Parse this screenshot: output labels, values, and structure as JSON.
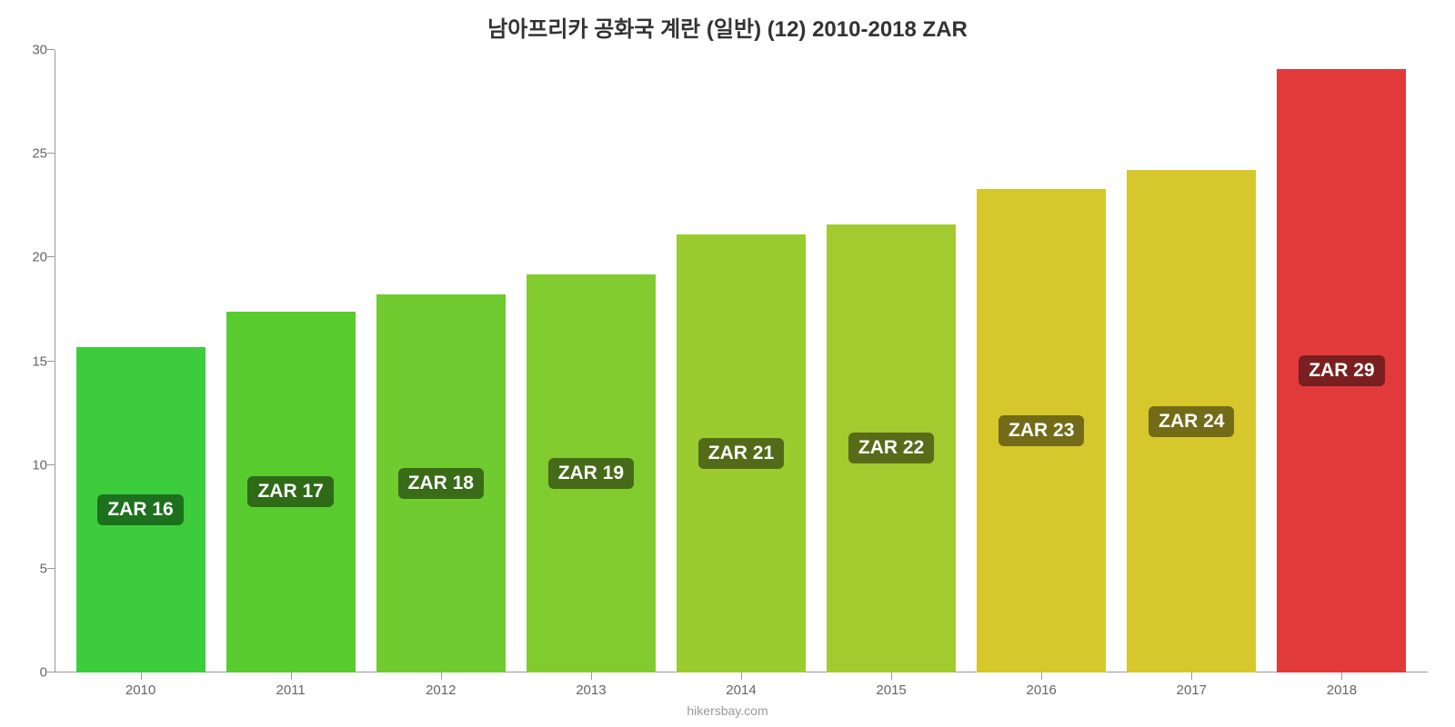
{
  "chart": {
    "type": "bar",
    "title": "남아프리카 공화국 계란 (일반) (12) 2010-2018 ZAR",
    "title_fontsize": 24,
    "title_color": "#333333",
    "background_color": "#ffffff",
    "axis_color": "#999999",
    "label_color": "#666666",
    "label_fontsize": 15,
    "ylim": [
      0,
      30
    ],
    "ytick_step": 5,
    "yticks": [
      {
        "value": 0,
        "label": "0"
      },
      {
        "value": 5,
        "label": "5"
      },
      {
        "value": 10,
        "label": "10"
      },
      {
        "value": 15,
        "label": "15"
      },
      {
        "value": 20,
        "label": "20"
      },
      {
        "value": 25,
        "label": "25"
      },
      {
        "value": 30,
        "label": "30"
      }
    ],
    "bar_width": 0.86,
    "bars": [
      {
        "category": "2010",
        "value": 15.7,
        "label": "ZAR 16",
        "bar_color": "#3ccc3c",
        "label_bg": "#1d701d"
      },
      {
        "category": "2011",
        "value": 17.4,
        "label": "ZAR 17",
        "bar_color": "#58cb2f",
        "label_bg": "#2f6a18"
      },
      {
        "category": "2012",
        "value": 18.2,
        "label": "ZAR 18",
        "bar_color": "#6fcb2f",
        "label_bg": "#3a6b18"
      },
      {
        "category": "2013",
        "value": 19.2,
        "label": "ZAR 19",
        "bar_color": "#82cb2f",
        "label_bg": "#456b18"
      },
      {
        "category": "2014",
        "value": 21.1,
        "label": "ZAR 21",
        "bar_color": "#9acb2f",
        "label_bg": "#526b18"
      },
      {
        "category": "2015",
        "value": 21.6,
        "label": "ZAR 22",
        "bar_color": "#a3cb2f",
        "label_bg": "#576b18"
      },
      {
        "category": "2016",
        "value": 23.3,
        "label": "ZAR 23",
        "bar_color": "#d6c82c",
        "label_bg": "#736b17"
      },
      {
        "category": "2017",
        "value": 24.2,
        "label": "ZAR 24",
        "bar_color": "#d6c82c",
        "label_bg": "#736b17"
      },
      {
        "category": "2018",
        "value": 29.1,
        "label": "ZAR 29",
        "bar_color": "#e23a3a",
        "label_bg": "#7a1f1f"
      }
    ],
    "bar_label_fontsize": 21,
    "bar_label_color": "#ffffff",
    "attribution": "hikersbay.com",
    "attribution_color": "#999999"
  }
}
